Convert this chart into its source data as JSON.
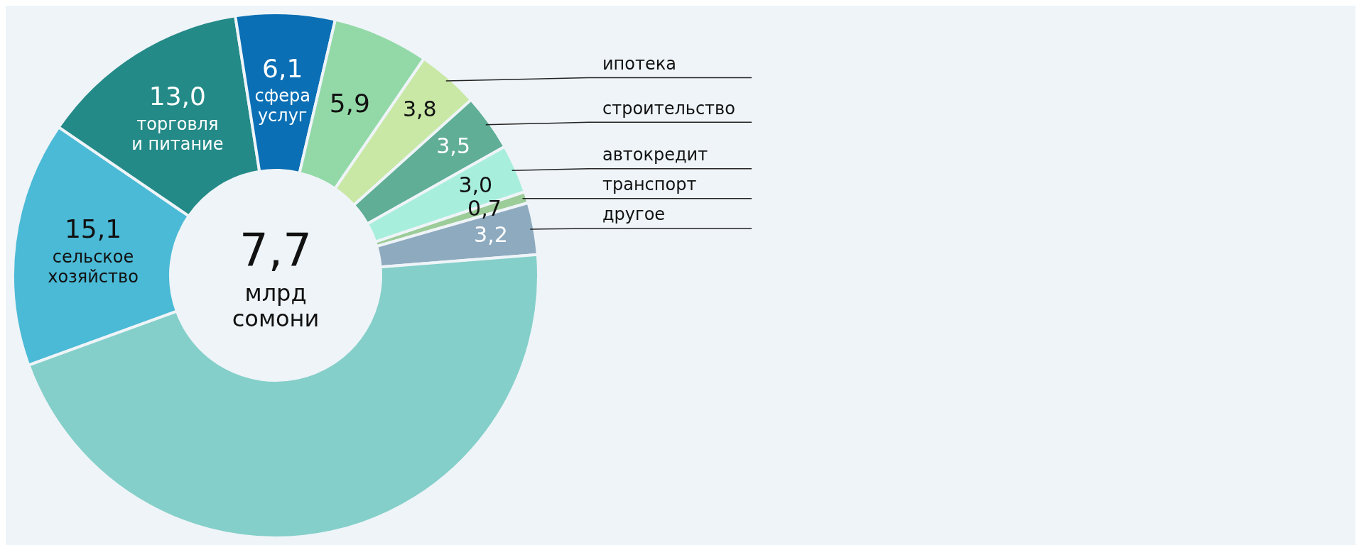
{
  "chart_data": {
    "type": "donut",
    "categories": [
      "сельское хозяйство",
      "торговля и питание",
      "сфера услуг",
      null,
      "ипотека",
      "строительство",
      "автокредит",
      "транспорт",
      "другое",
      null
    ],
    "values": [
      15.1,
      13.0,
      6.1,
      5.9,
      3.8,
      3.5,
      3.0,
      0.7,
      3.2,
      45.7
    ],
    "value_labels": [
      "15,1",
      "13,0",
      "6,1",
      "5,9",
      "3,8",
      "3,5",
      "3,0",
      "0,7",
      "3,2",
      null
    ],
    "colors": [
      "#4bbad6",
      "#238a87",
      "#0a6fb5",
      "#93d9a8",
      "#c9e8a6",
      "#5fae95",
      "#a8eedd",
      "#9ccc98",
      "#8eaabf",
      "#84cfc9"
    ],
    "annotations": [
      "7,7 млрд сомони"
    ]
  }
}
